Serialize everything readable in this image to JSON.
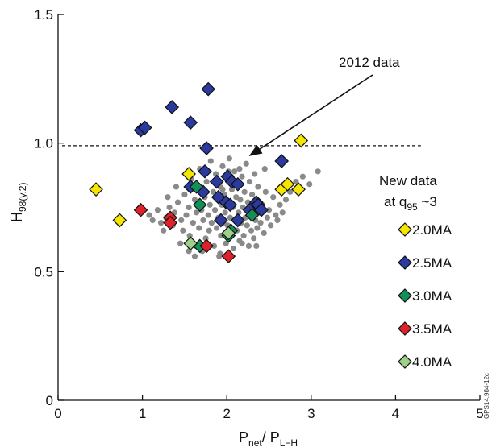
{
  "chart_data": {
    "type": "scatter",
    "xlim": [
      0,
      5
    ],
    "ylim": [
      0,
      1.5
    ],
    "xticks": [
      0,
      1,
      2,
      3,
      4,
      5
    ],
    "yticks": [
      0,
      0.5,
      1.0,
      1.5
    ],
    "xtick_labels": [
      "0",
      "1",
      "2",
      "3",
      "4",
      "5"
    ],
    "ytick_labels": [
      "0",
      "0.5",
      "1.0",
      "1.5"
    ],
    "xlabel": {
      "main": "P",
      "sub1": "net",
      "sep": "/ P",
      "sub2": "L−H"
    },
    "ylabel": {
      "main": "H",
      "sub": "98(y,2)"
    },
    "reference_line": {
      "y": 0.99,
      "style": "dashed"
    },
    "annotation": {
      "text": "2012 data",
      "arrow_to": [
        2.2,
        0.92
      ]
    },
    "legend_title": {
      "line1": "New data",
      "line2_main": "at q",
      "line2_sub": "95",
      "line2_tail": " ~3"
    },
    "legend_position": "right",
    "watermark": "GPS14.984-12c",
    "series": [
      {
        "name": "2012 data",
        "marker": "circle",
        "color": "#8a8a8a",
        "points": [
          [
            1.08,
            0.72
          ],
          [
            1.12,
            0.7
          ],
          [
            1.18,
            0.74
          ],
          [
            1.22,
            0.69
          ],
          [
            1.28,
            0.71
          ],
          [
            1.32,
            0.75
          ],
          [
            1.36,
            0.68
          ],
          [
            1.38,
            0.73
          ],
          [
            1.42,
            0.77
          ],
          [
            1.46,
            0.7
          ],
          [
            1.48,
            0.66
          ],
          [
            1.5,
            0.8
          ],
          [
            1.52,
            0.72
          ],
          [
            1.55,
            0.75
          ],
          [
            1.56,
            0.64
          ],
          [
            1.58,
            0.86
          ],
          [
            1.6,
            0.69
          ],
          [
            1.62,
            0.78
          ],
          [
            1.63,
            0.6
          ],
          [
            1.64,
            0.73
          ],
          [
            1.66,
            0.82
          ],
          [
            1.67,
            0.67
          ],
          [
            1.68,
            0.9
          ],
          [
            1.7,
            0.74
          ],
          [
            1.71,
            0.58
          ],
          [
            1.72,
            0.7
          ],
          [
            1.74,
            0.79
          ],
          [
            1.75,
            0.63
          ],
          [
            1.76,
            0.85
          ],
          [
            1.78,
            0.72
          ],
          [
            1.79,
            0.66
          ],
          [
            1.8,
            0.76
          ],
          [
            1.81,
            0.93
          ],
          [
            1.82,
            0.69
          ],
          [
            1.84,
            0.81
          ],
          [
            1.85,
            0.6
          ],
          [
            1.86,
            0.74
          ],
          [
            1.87,
            0.88
          ],
          [
            1.88,
            0.67
          ],
          [
            1.89,
            0.78
          ],
          [
            1.9,
            0.71
          ],
          [
            1.91,
            0.56
          ],
          [
            1.92,
            0.83
          ],
          [
            1.93,
            0.64
          ],
          [
            1.94,
            0.76
          ],
          [
            1.95,
            0.91
          ],
          [
            1.96,
            0.69
          ],
          [
            1.97,
            0.8
          ],
          [
            1.98,
            0.73
          ],
          [
            1.99,
            0.61
          ],
          [
            2.0,
            0.86
          ],
          [
            2.01,
            0.68
          ],
          [
            2.02,
            0.77
          ],
          [
            2.03,
            0.94
          ],
          [
            2.04,
            0.71
          ],
          [
            2.05,
            0.65
          ],
          [
            2.06,
            0.82
          ],
          [
            2.07,
            0.75
          ],
          [
            2.08,
            0.59
          ],
          [
            2.09,
            0.89
          ],
          [
            2.1,
            0.7
          ],
          [
            2.11,
            0.79
          ],
          [
            2.12,
            0.66
          ],
          [
            2.13,
            0.84
          ],
          [
            2.14,
            0.73
          ],
          [
            2.15,
            0.62
          ],
          [
            2.16,
            0.78
          ],
          [
            2.17,
            0.69
          ],
          [
            2.18,
            0.87
          ],
          [
            2.19,
            0.75
          ],
          [
            2.2,
            0.64
          ],
          [
            2.21,
            0.81
          ],
          [
            2.22,
            0.71
          ],
          [
            2.23,
            0.92
          ],
          [
            2.24,
            0.68
          ],
          [
            2.25,
            0.77
          ],
          [
            2.26,
            0.6
          ],
          [
            2.27,
            0.85
          ],
          [
            2.28,
            0.72
          ],
          [
            2.29,
            0.66
          ],
          [
            2.3,
            0.8
          ],
          [
            2.31,
            0.74
          ],
          [
            2.32,
            0.63
          ],
          [
            2.33,
            0.88
          ],
          [
            2.34,
            0.7
          ],
          [
            2.35,
            0.78
          ],
          [
            2.36,
            0.67
          ],
          [
            2.37,
            0.83
          ],
          [
            2.38,
            0.73
          ],
          [
            2.4,
            0.69
          ],
          [
            2.42,
            0.76
          ],
          [
            2.44,
            0.65
          ],
          [
            2.46,
            0.81
          ],
          [
            2.48,
            0.71
          ],
          [
            2.5,
            0.74
          ],
          [
            2.52,
            0.68
          ],
          [
            2.55,
            0.79
          ],
          [
            2.58,
            0.72
          ],
          [
            2.6,
            0.7
          ],
          [
            2.63,
            0.76
          ],
          [
            2.66,
            0.73
          ],
          [
            2.7,
            0.78
          ],
          [
            2.75,
            0.81
          ],
          [
            2.82,
            0.85
          ],
          [
            2.9,
            0.87
          ],
          [
            2.98,
            0.84
          ],
          [
            3.08,
            0.89
          ],
          [
            1.45,
            0.61
          ],
          [
            1.55,
            0.58
          ],
          [
            1.62,
            0.56
          ],
          [
            1.92,
            0.57
          ],
          [
            2.18,
            0.61
          ],
          [
            2.35,
            0.6
          ],
          [
            1.25,
            0.66
          ],
          [
            1.4,
            0.83
          ],
          [
            1.3,
            0.79
          ],
          [
            2.45,
            0.9
          ],
          [
            2.02,
            0.89
          ],
          [
            1.95,
            0.82
          ],
          [
            2.15,
            0.9
          ]
        ]
      },
      {
        "name": "2.0MA",
        "marker": "diamond",
        "color": "#f5e600",
        "points": [
          [
            0.45,
            0.82
          ],
          [
            0.73,
            0.7
          ],
          [
            1.55,
            0.88
          ],
          [
            2.65,
            0.82
          ],
          [
            2.72,
            0.84
          ],
          [
            2.85,
            0.82
          ],
          [
            2.88,
            1.01
          ]
        ]
      },
      {
        "name": "2.5MA",
        "marker": "diamond",
        "color": "#2b3a9e",
        "points": [
          [
            0.98,
            1.05
          ],
          [
            1.03,
            1.06
          ],
          [
            1.35,
            1.14
          ],
          [
            1.57,
            1.08
          ],
          [
            1.78,
            1.21
          ],
          [
            1.76,
            0.98
          ],
          [
            1.57,
            0.83
          ],
          [
            1.72,
            0.81
          ],
          [
            1.74,
            0.89
          ],
          [
            1.88,
            0.85
          ],
          [
            1.9,
            0.79
          ],
          [
            1.93,
            0.7
          ],
          [
            2.01,
            0.87
          ],
          [
            2.06,
            0.85
          ],
          [
            1.99,
            0.77
          ],
          [
            2.04,
            0.76
          ],
          [
            2.13,
            0.84
          ],
          [
            2.13,
            0.7
          ],
          [
            2.27,
            0.74
          ],
          [
            2.35,
            0.77
          ],
          [
            2.37,
            0.76
          ],
          [
            2.41,
            0.74
          ],
          [
            2.65,
            0.93
          ]
        ]
      },
      {
        "name": "3.0MA",
        "marker": "diamond",
        "color": "#13905a",
        "points": [
          [
            1.64,
            0.83
          ],
          [
            1.68,
            0.76
          ],
          [
            1.68,
            0.6
          ],
          [
            2.02,
            0.64
          ],
          [
            2.05,
            0.66
          ],
          [
            2.3,
            0.72
          ]
        ]
      },
      {
        "name": "3.5MA",
        "marker": "diamond",
        "color": "#e0202a",
        "points": [
          [
            0.98,
            0.74
          ],
          [
            1.33,
            0.71
          ],
          [
            1.33,
            0.69
          ],
          [
            1.76,
            0.6
          ],
          [
            2.02,
            0.56
          ]
        ]
      },
      {
        "name": "4.0MA",
        "marker": "diamond",
        "color": "#9fd08a",
        "points": [
          [
            1.57,
            0.61
          ],
          [
            2.02,
            0.65
          ]
        ]
      }
    ]
  }
}
